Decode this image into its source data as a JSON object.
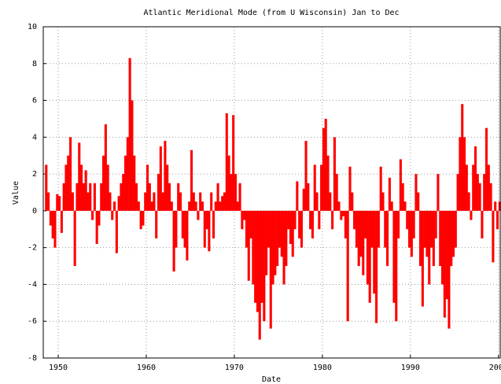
{
  "chart_data": {
    "type": "bar",
    "title": "Atlantic Meridional Mode (from U Wisconsin) Jan to Dec",
    "x_label": "Date",
    "y_label": "Value",
    "color": "#ff0000",
    "grid": true,
    "xlim": [
      1948.3,
      2000.2
    ],
    "ylim": [
      -8,
      10
    ],
    "xticks": [
      1950,
      1960,
      1970,
      1980,
      1990,
      2000
    ],
    "yticks": [
      -8,
      -6,
      -4,
      -2,
      0,
      2,
      4,
      6,
      8,
      10
    ],
    "x": [
      1948.5,
      1948.75,
      1949,
      1949.25,
      1949.5,
      1949.75,
      1950,
      1950.25,
      1950.5,
      1950.75,
      1951,
      1951.25,
      1951.5,
      1951.75,
      1952,
      1952.25,
      1952.5,
      1952.75,
      1953,
      1953.25,
      1953.5,
      1953.75,
      1954,
      1954.25,
      1954.5,
      1954.75,
      1955,
      1955.25,
      1955.5,
      1955.75,
      1956,
      1956.25,
      1956.5,
      1956.75,
      1957,
      1957.25,
      1957.5,
      1957.75,
      1958,
      1958.25,
      1958.5,
      1958.75,
      1959,
      1959.25,
      1959.5,
      1959.75,
      1960,
      1960.25,
      1960.5,
      1960.75,
      1961,
      1961.25,
      1961.5,
      1961.75,
      1962,
      1962.25,
      1962.5,
      1962.75,
      1963,
      1963.25,
      1963.5,
      1963.75,
      1964,
      1964.25,
      1964.5,
      1964.75,
      1965,
      1965.25,
      1965.5,
      1965.75,
      1966,
      1966.25,
      1966.5,
      1966.75,
      1967,
      1967.25,
      1967.5,
      1967.75,
      1968,
      1968.25,
      1968.5,
      1968.75,
      1969,
      1969.25,
      1969.5,
      1969.75,
      1970,
      1970.25,
      1970.5,
      1970.75,
      1971,
      1971.25,
      1971.5,
      1971.75,
      1972,
      1972.25,
      1972.5,
      1972.75,
      1973,
      1973.25,
      1973.5,
      1973.75,
      1974,
      1974.25,
      1974.5,
      1974.75,
      1975,
      1975.25,
      1975.5,
      1975.75,
      1976,
      1976.25,
      1976.5,
      1976.75,
      1977,
      1977.25,
      1977.5,
      1977.75,
      1978,
      1978.25,
      1978.5,
      1978.75,
      1979,
      1979.25,
      1979.5,
      1979.75,
      1980,
      1980.25,
      1980.5,
      1980.75,
      1981,
      1981.25,
      1981.5,
      1981.75,
      1982,
      1982.25,
      1982.5,
      1982.75,
      1983,
      1983.25,
      1983.5,
      1983.75,
      1984,
      1984.25,
      1984.5,
      1984.75,
      1985,
      1985.25,
      1985.5,
      1985.75,
      1986,
      1986.25,
      1986.5,
      1986.75,
      1987,
      1987.25,
      1987.5,
      1987.75,
      1988,
      1988.25,
      1988.5,
      1988.75,
      1989,
      1989.25,
      1989.5,
      1989.75,
      1990,
      1990.25,
      1990.5,
      1990.75,
      1991,
      1991.25,
      1991.5,
      1991.75,
      1992,
      1992.25,
      1992.5,
      1992.75,
      1993,
      1993.25,
      1993.5,
      1993.75,
      1994,
      1994.25,
      1994.5,
      1994.75,
      1995,
      1995.25,
      1995.5,
      1995.75,
      1996,
      1996.25,
      1996.5,
      1996.75,
      1997,
      1997.25,
      1997.5,
      1997.75,
      1998,
      1998.25,
      1998.5,
      1998.75,
      1999,
      1999.25,
      1999.5,
      1999.75,
      2000
    ],
    "values": [
      2.5,
      1.0,
      -0.8,
      -1.5,
      -2.0,
      0.9,
      0.8,
      -1.2,
      1.5,
      2.5,
      3.0,
      4.0,
      1.0,
      -3.0,
      1.5,
      3.7,
      2.5,
      1.5,
      2.2,
      1.0,
      1.5,
      -0.5,
      1.5,
      -1.8,
      -0.8,
      1.5,
      3.0,
      4.7,
      2.5,
      1.0,
      -0.5,
      0.5,
      -2.3,
      0.8,
      1.5,
      2.0,
      3.0,
      4.0,
      8.3,
      6.0,
      3.0,
      1.5,
      0.5,
      -1.0,
      -0.8,
      1.0,
      2.5,
      1.5,
      0.5,
      1.0,
      -1.5,
      2.0,
      3.5,
      1.0,
      3.8,
      2.5,
      1.5,
      0.5,
      -3.3,
      -2.0,
      1.5,
      1.0,
      -1.5,
      -2.0,
      -2.7,
      0.5,
      3.3,
      1.0,
      0.5,
      -0.5,
      1.0,
      0.5,
      -2.0,
      -1.0,
      -2.2,
      1.0,
      -1.5,
      0.5,
      1.5,
      0.5,
      0.8,
      1.0,
      5.3,
      3.0,
      2.0,
      5.2,
      2.0,
      0.5,
      1.5,
      -1.0,
      -0.5,
      -2.0,
      -3.8,
      -1.5,
      -4.0,
      -5.0,
      -5.5,
      -7.0,
      -5.0,
      -6.0,
      -3.5,
      -2.0,
      -6.4,
      -4.0,
      -3.5,
      -3.0,
      -2.0,
      -2.5,
      -4.0,
      -3.0,
      -1.0,
      -1.8,
      -2.5,
      -1.0,
      1.6,
      -1.5,
      -2.0,
      1.2,
      3.8,
      1.5,
      -1.0,
      -1.5,
      2.5,
      1.0,
      -1.0,
      2.5,
      4.5,
      5.0,
      3.0,
      1.0,
      -1.0,
      4.0,
      2.0,
      0.5,
      -0.5,
      -0.3,
      -1.5,
      -6.0,
      2.4,
      1.0,
      -1.0,
      -2.0,
      -3.0,
      -2.5,
      -3.5,
      -1.5,
      -4.0,
      -5.0,
      -2.0,
      -4.5,
      -6.1,
      -2.0,
      2.4,
      1.0,
      -2.0,
      -3.0,
      1.8,
      0.5,
      -5.0,
      -6.0,
      -1.5,
      2.8,
      1.5,
      0.5,
      -1.0,
      -2.0,
      -2.5,
      -1.5,
      2.0,
      1.0,
      -3.0,
      -5.2,
      -2.0,
      -2.5,
      -4.0,
      -2.0,
      -3.0,
      -1.5,
      2.0,
      -3.0,
      -4.0,
      -5.8,
      -4.8,
      -6.4,
      -3.0,
      -2.5,
      -2.0,
      2.0,
      4.0,
      5.8,
      4.0,
      2.5,
      1.0,
      -0.5,
      2.5,
      3.5,
      2.0,
      1.5,
      -1.5,
      2.0,
      4.5,
      2.5,
      1.5,
      -2.8,
      0.5,
      -1.0,
      0.5
    ]
  }
}
